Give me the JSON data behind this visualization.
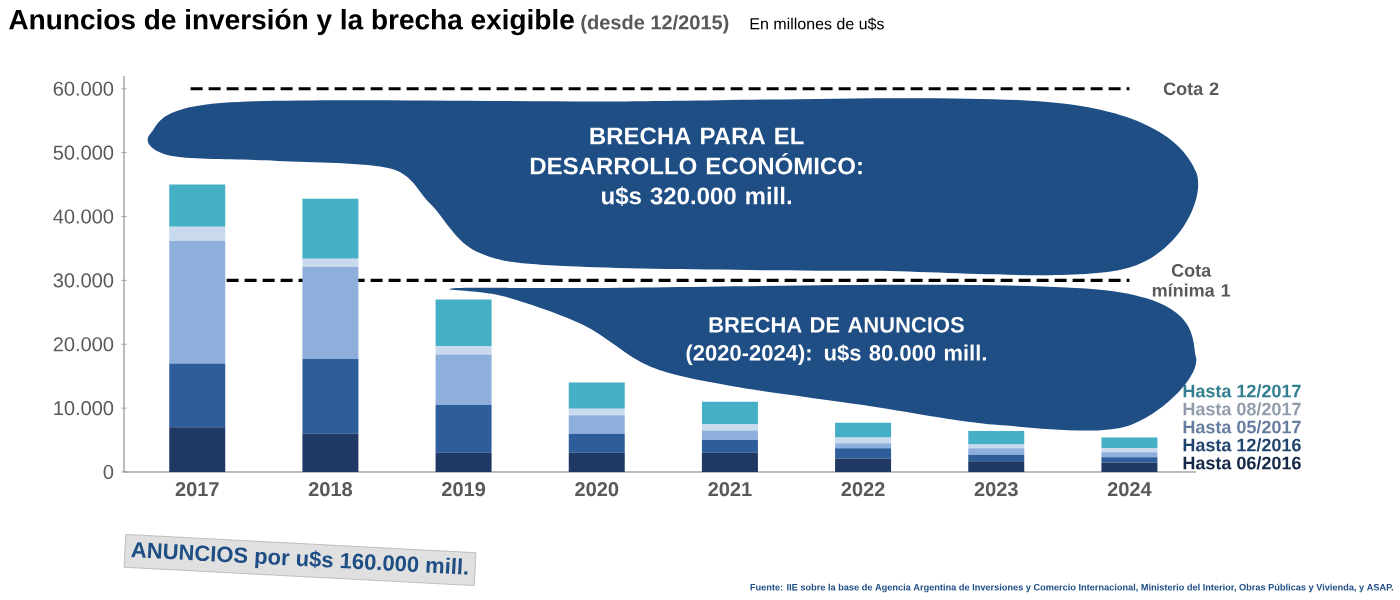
{
  "chart_data": {
    "type": "bar",
    "stacked": true,
    "title": "Anuncios de inversión y la brecha exigible",
    "subtitle": "(desde 12/2015)",
    "ylabel": "En millones de u$s",
    "categories": [
      "2017",
      "2018",
      "2019",
      "2020",
      "2021",
      "2022",
      "2023",
      "2024"
    ],
    "series": [
      {
        "name": "Hasta 06/2016",
        "color": "#1f3864",
        "values": [
          7000,
          6000,
          3000,
          3000,
          3000,
          2100,
          1700,
          1500
        ]
      },
      {
        "name": "Hasta 12/2016",
        "color": "#2e5e99",
        "values": [
          10000,
          11700,
          7500,
          3000,
          2000,
          1600,
          1000,
          800
        ]
      },
      {
        "name": "Hasta 05/2017",
        "color": "#8eaedc",
        "values": [
          19200,
          14400,
          7900,
          2900,
          1500,
          800,
          1000,
          800
        ]
      },
      {
        "name": "Hasta 08/2017",
        "color": "#c9d9ee",
        "values": [
          2200,
          1300,
          1300,
          1000,
          1000,
          900,
          600,
          600
        ]
      },
      {
        "name": "Hasta 12/2017",
        "color": "#45afc6",
        "values": [
          6600,
          9400,
          7300,
          4100,
          3500,
          2300,
          2100,
          1700
        ]
      }
    ],
    "ylim": [
      0,
      62000
    ],
    "yticks": [
      {
        "value": 0,
        "label": "0"
      },
      {
        "value": 10000,
        "label": "10.000"
      },
      {
        "value": 20000,
        "label": "20.000"
      },
      {
        "value": 30000,
        "label": "30.000"
      },
      {
        "value": 40000,
        "label": "40.000"
      },
      {
        "value": 50000,
        "label": "50.000"
      },
      {
        "value": 60000,
        "label": "60.000"
      }
    ],
    "ref_lines": [
      {
        "axis": "y",
        "value": 60000,
        "label": "Cota 2",
        "line_style": "dashed",
        "color": "#000000"
      },
      {
        "axis": "y",
        "value": 30000,
        "label": "Cota mínima 1",
        "line_style": "dashed",
        "color": "#000000"
      }
    ],
    "annotations": [
      "BRECHA PARA EL DESARROLLO ECONÓMICO: u$s 320.000 mill.",
      "BRECHA DE ANUNCIOS (2020-2024): u$s 80.000 mill.",
      "ANUNCIOS por u$s **160.000** mill.",
      "Fuente: IIE sobre la base de Agencia Argentina de Inversiones y Comercio Internacional, Ministerio del Interior, Obras Públicas y Vivienda, y ASAP."
    ],
    "grid": false,
    "legend": "bottom right"
  }
}
